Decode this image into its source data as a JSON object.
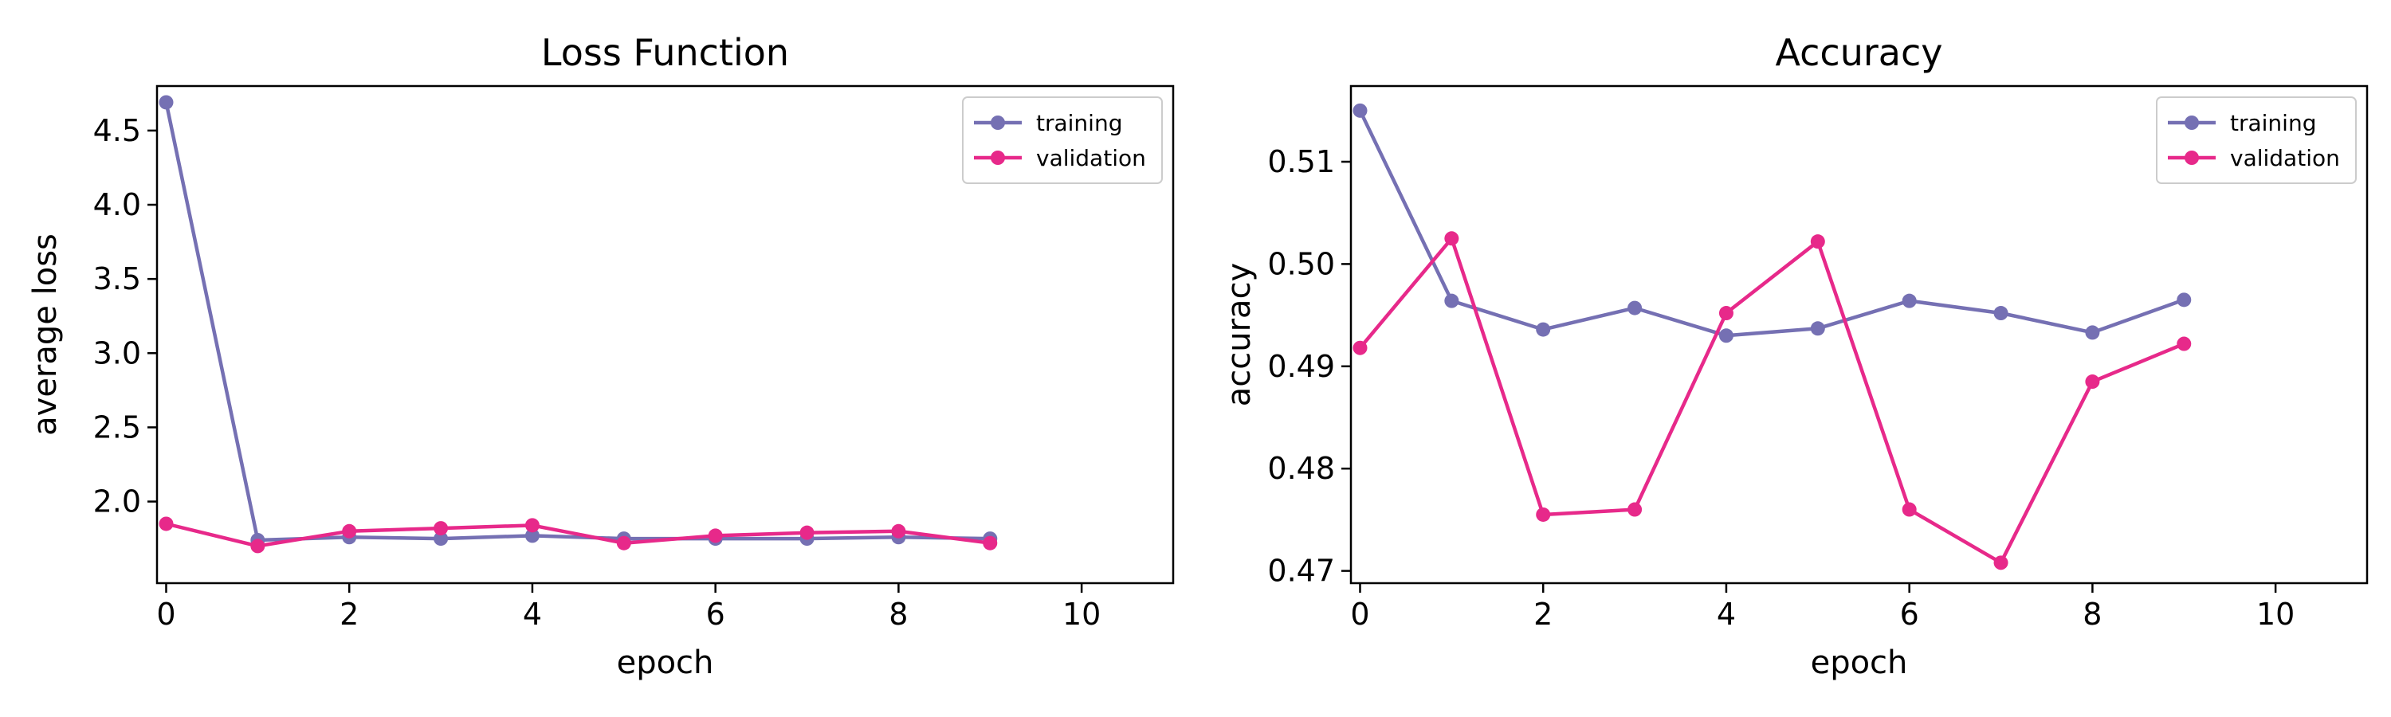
{
  "colors": {
    "training": "#7570b3",
    "validation": "#e7298a"
  },
  "chart_data": [
    {
      "type": "line",
      "title": "Loss Function",
      "xlabel": "epoch",
      "ylabel": "average loss",
      "xlim": [
        -0.1,
        11
      ],
      "ylim": [
        1.45,
        4.8
      ],
      "xticks": [
        0,
        2,
        4,
        6,
        8,
        10
      ],
      "yticks": [
        2.0,
        2.5,
        3.0,
        3.5,
        4.0,
        4.5
      ],
      "ytick_labels": [
        "2.0",
        "2.5",
        "3.0",
        "3.5",
        "4.0",
        "4.5"
      ],
      "grid": false,
      "legend_position": "top-right",
      "x": [
        0,
        1,
        2,
        3,
        4,
        5,
        6,
        7,
        8,
        9
      ],
      "series": [
        {
          "name": "training",
          "values": [
            4.69,
            1.74,
            1.76,
            1.75,
            1.77,
            1.75,
            1.75,
            1.75,
            1.76,
            1.75
          ]
        },
        {
          "name": "validation",
          "values": [
            1.85,
            1.7,
            1.8,
            1.82,
            1.84,
            1.72,
            1.77,
            1.79,
            1.8,
            1.72
          ]
        }
      ]
    },
    {
      "type": "line",
      "title": "Accuracy",
      "xlabel": "epoch",
      "ylabel": "accuracy",
      "xlim": [
        -0.1,
        11
      ],
      "ylim": [
        0.4688,
        0.5174
      ],
      "xticks": [
        0,
        2,
        4,
        6,
        8,
        10
      ],
      "yticks": [
        0.47,
        0.48,
        0.49,
        0.5,
        0.51
      ],
      "ytick_labels": [
        "0.47",
        "0.48",
        "0.49",
        "0.50",
        "0.51"
      ],
      "grid": false,
      "legend_position": "top-right",
      "x": [
        0,
        1,
        2,
        3,
        4,
        5,
        6,
        7,
        8,
        9
      ],
      "series": [
        {
          "name": "training",
          "values": [
            0.515,
            0.4964,
            0.4936,
            0.4957,
            0.493,
            0.4937,
            0.4964,
            0.4952,
            0.4933,
            0.4965
          ]
        },
        {
          "name": "validation",
          "values": [
            0.4918,
            0.5025,
            0.4755,
            0.476,
            0.4952,
            0.5022,
            0.476,
            0.4708,
            0.4885,
            0.4922
          ]
        }
      ]
    }
  ]
}
